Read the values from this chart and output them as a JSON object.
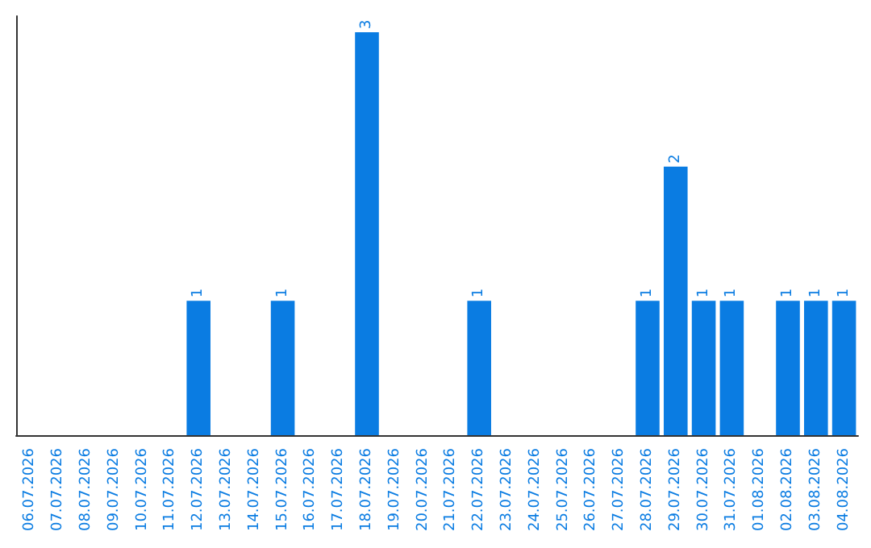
{
  "chart_data": {
    "type": "bar",
    "categories": [
      "06.07.2026",
      "07.07.2026",
      "08.07.2026",
      "09.07.2026",
      "10.07.2026",
      "11.07.2026",
      "12.07.2026",
      "13.07.2026",
      "14.07.2026",
      "15.07.2026",
      "16.07.2026",
      "17.07.2026",
      "18.07.2026",
      "19.07.2026",
      "20.07.2026",
      "21.07.2026",
      "22.07.2026",
      "23.07.2026",
      "24.07.2026",
      "25.07.2026",
      "26.07.2026",
      "27.07.2026",
      "28.07.2026",
      "29.07.2026",
      "30.07.2026",
      "31.07.2026",
      "01.08.2026",
      "02.08.2026",
      "03.08.2026",
      "04.08.2026"
    ],
    "values": [
      0,
      0,
      0,
      0,
      0,
      0,
      1,
      0,
      0,
      1,
      0,
      0,
      3,
      0,
      0,
      0,
      1,
      0,
      0,
      0,
      0,
      0,
      1,
      2,
      1,
      1,
      0,
      1,
      1,
      1
    ],
    "value_labels": [
      null,
      null,
      null,
      null,
      null,
      null,
      "1",
      null,
      null,
      "1",
      null,
      null,
      "3",
      null,
      null,
      null,
      "1",
      null,
      null,
      null,
      null,
      null,
      "1",
      "2",
      "1",
      "1",
      null,
      "1",
      "1",
      "1"
    ],
    "color": "#0a7ce2",
    "tick_labels": "x"
  }
}
